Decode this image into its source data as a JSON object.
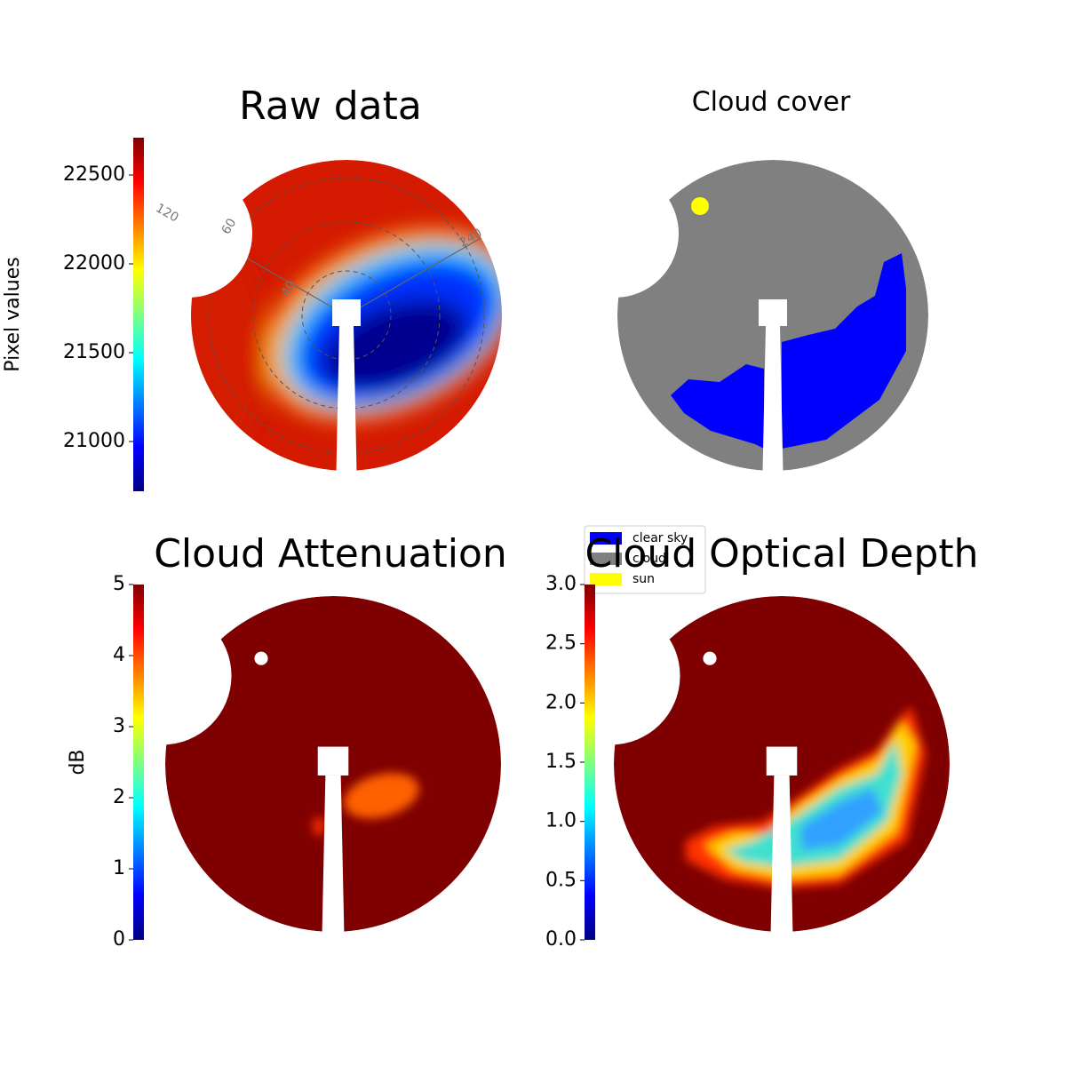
{
  "chart_data": [
    {
      "type": "image",
      "title": "Raw data",
      "colorbar": {
        "label": "Pixel values",
        "ylim": [
          20720,
          22710
        ],
        "yticks": [
          21000,
          21500,
          22000,
          22500
        ]
      },
      "annotations": [
        "120",
        "60",
        "40",
        "240"
      ]
    },
    {
      "type": "image",
      "title": "Cloud cover",
      "legend": [
        {
          "name": "clear sky",
          "color": "#0000ff"
        },
        {
          "name": "cloud",
          "color": "#808080"
        },
        {
          "name": "sun",
          "color": "#ffff00"
        }
      ]
    },
    {
      "type": "image",
      "title": "Cloud Attenuation",
      "colorbar": {
        "label": "dB",
        "ylim": [
          0,
          5
        ],
        "yticks": [
          0,
          1,
          2,
          3,
          4,
          5
        ]
      }
    },
    {
      "type": "image",
      "title": "Cloud Optical Depth",
      "colorbar": {
        "ylim": [
          0,
          3
        ],
        "yticks": [
          {
            "value": 0,
            "label": "0.0"
          },
          {
            "value": 0.5,
            "label": "0.5"
          },
          {
            "value": 1,
            "label": "1.0"
          },
          {
            "value": 1.5,
            "label": "1.5"
          },
          {
            "value": 2,
            "label": "2.0"
          },
          {
            "value": 2.5,
            "label": "2.5"
          },
          {
            "value": 3,
            "label": "3.0"
          }
        ]
      }
    }
  ]
}
